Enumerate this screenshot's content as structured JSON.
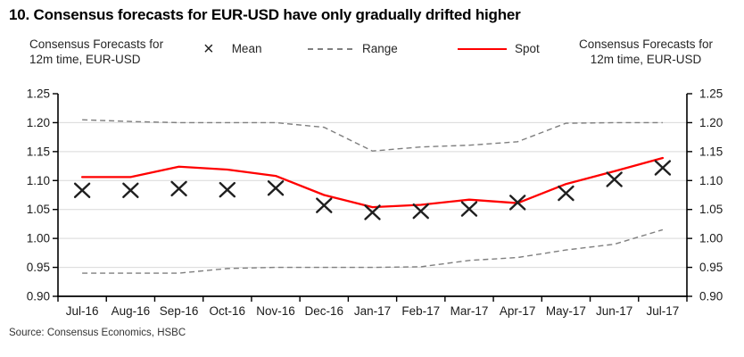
{
  "title": "10. Consensus forecasts for EUR-USD have only gradually drifted higher",
  "legend": {
    "left_note_line1": "Consensus Forecasts for",
    "left_note_line2": "12m time, EUR-USD",
    "mean_label": "Mean",
    "range_label": "Range",
    "spot_label": "Spot",
    "right_note_line1": "Consensus Forecasts for",
    "right_note_line2": "12m time, EUR-USD"
  },
  "source": "Source: Consensus Economics, HSBC",
  "colors": {
    "spot": "#FF0000",
    "range": "#7F7F7F",
    "mean": "#1F1F1F",
    "gridline": "#D9D9D9",
    "axis": "#000000",
    "text": "#1A1A1A"
  },
  "chart_data": {
    "type": "line",
    "title": "10. Consensus forecasts for EUR-USD have only gradually drifted higher",
    "axis_note_left": "Consensus Forecasts for 12m time, EUR-USD",
    "axis_note_right": "Consensus Forecasts for 12m time, EUR-USD",
    "categories": [
      "Jul-16",
      "Aug-16",
      "Sep-16",
      "Oct-16",
      "Nov-16",
      "Dec-16",
      "Jan-17",
      "Feb-17",
      "Mar-17",
      "Apr-17",
      "May-17",
      "Jun-17",
      "Jul-17"
    ],
    "series": [
      {
        "name": "Mean",
        "style": "x-marker",
        "values": [
          1.083,
          1.083,
          1.086,
          1.084,
          1.087,
          1.057,
          1.045,
          1.047,
          1.051,
          1.062,
          1.078,
          1.102,
          1.122
        ]
      },
      {
        "name": "Range upper",
        "style": "dashed",
        "values": [
          1.205,
          1.202,
          1.2,
          1.2,
          1.2,
          1.192,
          1.151,
          1.158,
          1.161,
          1.167,
          1.199,
          1.2,
          1.2
        ]
      },
      {
        "name": "Range lower",
        "style": "dashed",
        "values": [
          0.94,
          0.94,
          0.94,
          0.948,
          0.95,
          0.95,
          0.95,
          0.951,
          0.962,
          0.967,
          0.98,
          0.99,
          1.015
        ]
      },
      {
        "name": "Spot",
        "style": "solid",
        "values": [
          1.106,
          1.106,
          1.124,
          1.119,
          1.108,
          1.075,
          1.054,
          1.058,
          1.067,
          1.061,
          1.094,
          1.116,
          1.139
        ]
      }
    ],
    "ylim": [
      0.9,
      1.25
    ],
    "ytick_step": 0.05,
    "ytick_labels_both_sides": true,
    "grid": true,
    "legend_position": "top"
  }
}
